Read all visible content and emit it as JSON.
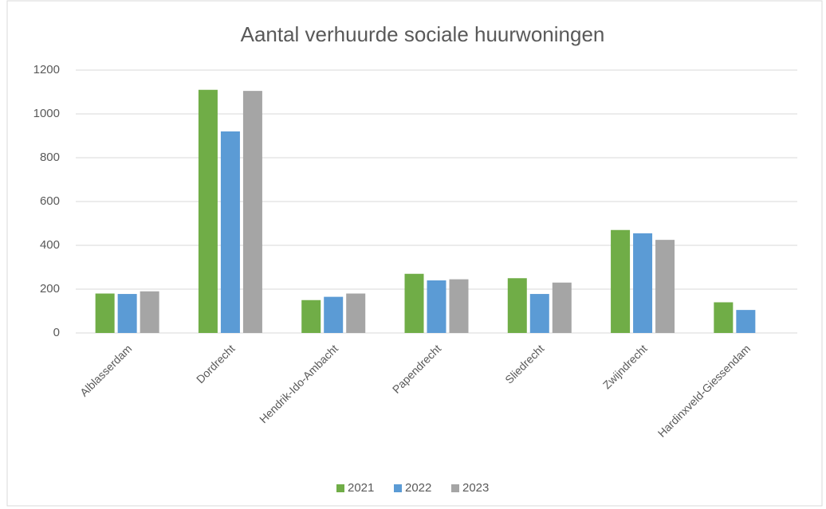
{
  "chart_data": {
    "type": "bar",
    "title": "Aantal verhuurde sociale huurwoningen",
    "categories": [
      "Alblasserdam",
      "Dordrecht",
      "Hendrik-Ido-Ambacht",
      "Papendrecht",
      "Sliedrecht",
      "Zwijndrecht",
      "Hardinxveld-Giessendam"
    ],
    "series": [
      {
        "name": "2021",
        "color": "#70ad47",
        "values": [
          180,
          1110,
          150,
          270,
          250,
          470,
          140
        ]
      },
      {
        "name": "2022",
        "color": "#5b9bd5",
        "values": [
          178,
          920,
          165,
          240,
          178,
          455,
          105
        ]
      },
      {
        "name": "2023",
        "color": "#a5a5a5",
        "values": [
          190,
          1105,
          180,
          245,
          230,
          425,
          null
        ]
      }
    ],
    "ylim": [
      0,
      1200
    ],
    "yticks": [
      0,
      200,
      400,
      600,
      800,
      1000,
      1200
    ],
    "grid": true,
    "legend": "bottom"
  }
}
